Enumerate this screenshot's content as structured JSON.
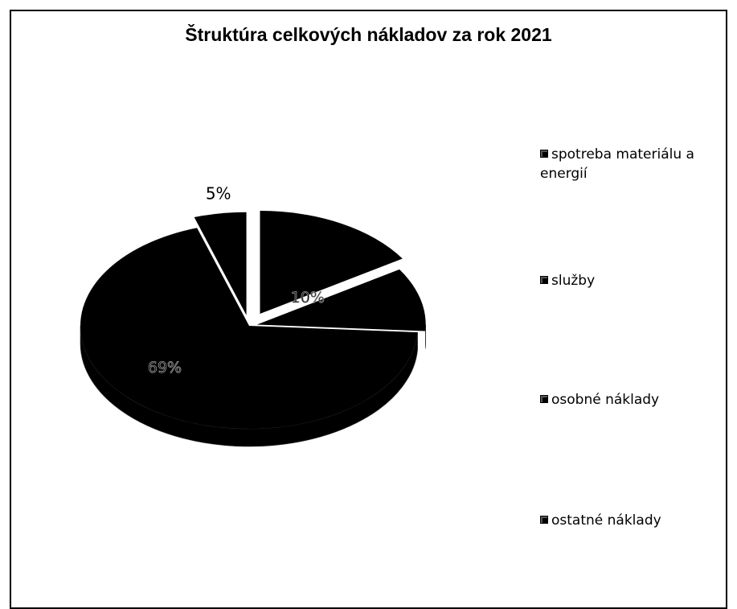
{
  "chart_data": {
    "type": "pie",
    "title": "Štruktúra celkových nákladov za rok 2021",
    "categories": [
      "spotreba materiálu a energií",
      "služby",
      "osobné náklady",
      "ostatné náklady"
    ],
    "values": [
      16,
      10,
      69,
      5
    ],
    "data_labels": [
      "",
      "10%",
      "69%",
      "5%"
    ],
    "exploded": true,
    "three_d": true,
    "legend_position": "right",
    "colors": {
      "slices": "#000000",
      "background": "#ffffff",
      "border": "#000000"
    }
  }
}
